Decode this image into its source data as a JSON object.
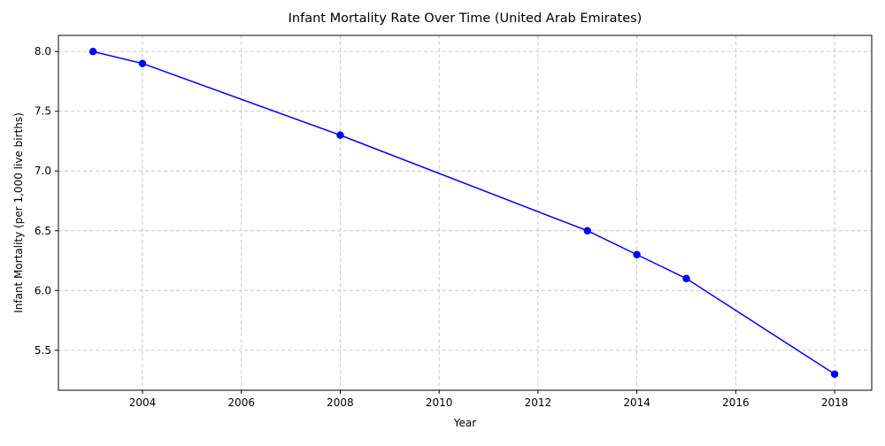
{
  "chart_data": {
    "type": "line",
    "title": "Infant Mortality Rate Over Time (United Arab Emirates)",
    "xlabel": "Year",
    "ylabel": "Infant Mortality (per 1,000 live births)",
    "xlim": [
      2002.3,
      2018.75
    ],
    "ylim": [
      5.165,
      8.135
    ],
    "xticks": [
      2004,
      2006,
      2008,
      2010,
      2012,
      2014,
      2016,
      2018
    ],
    "yticks": [
      5.5,
      6.0,
      6.5,
      7.0,
      7.5,
      8.0
    ],
    "ytick_labels": [
      "5.5",
      "6.0",
      "6.5",
      "7.0",
      "7.5",
      "8.0"
    ],
    "grid": true,
    "series": [
      {
        "color": "#0000ff",
        "marker": "circle",
        "x": [
          2003,
          2004,
          2008,
          2013,
          2014,
          2015,
          2018
        ],
        "y": [
          8.0,
          7.9,
          7.3,
          6.5,
          6.3,
          6.1,
          5.3
        ]
      }
    ]
  }
}
